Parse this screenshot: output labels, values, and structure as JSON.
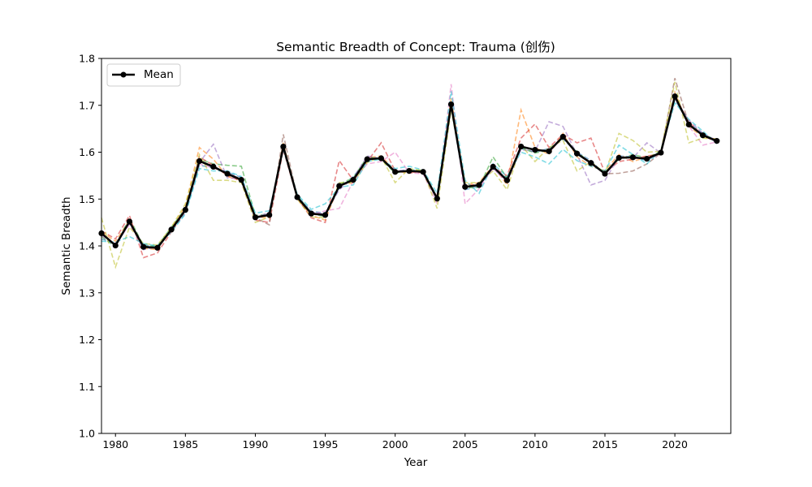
{
  "chart_data": {
    "type": "line",
    "title": "Semantic Breadth of Concept: Trauma (创伤)",
    "xlabel": "Year",
    "ylabel": "Semantic Breadth",
    "xlim": [
      1979,
      2024
    ],
    "ylim": [
      1.0,
      1.8
    ],
    "xticks": [
      1980,
      1985,
      1990,
      1995,
      2000,
      2005,
      2010,
      2015,
      2020
    ],
    "yticks": [
      1.0,
      1.1,
      1.2,
      1.3,
      1.4,
      1.5,
      1.6,
      1.7,
      1.8
    ],
    "ytick_labels": [
      "1.0",
      "1.1",
      "1.2",
      "1.3",
      "1.4",
      "1.5",
      "1.6",
      "1.7",
      "1.8"
    ],
    "grid": false,
    "legend_position": "top-left",
    "x": [
      1979,
      1980,
      1981,
      1982,
      1983,
      1984,
      1985,
      1986,
      1987,
      1988,
      1989,
      1990,
      1991,
      1992,
      1993,
      1994,
      1995,
      1996,
      1997,
      1998,
      1999,
      2000,
      2001,
      2002,
      2003,
      2004,
      2005,
      2006,
      2007,
      2008,
      2009,
      2010,
      2011,
      2012,
      2013,
      2014,
      2015,
      2016,
      2017,
      2018,
      2019,
      2020,
      2021,
      2022,
      2023
    ],
    "series": [
      {
        "name": "Mean",
        "color": "#000000",
        "values": [
          1.427,
          1.401,
          1.452,
          1.398,
          1.396,
          1.435,
          1.477,
          1.581,
          1.569,
          1.554,
          1.541,
          1.461,
          1.466,
          1.612,
          1.504,
          1.469,
          1.466,
          1.528,
          1.541,
          1.585,
          1.587,
          1.558,
          1.56,
          1.558,
          1.501,
          1.702,
          1.526,
          1.53,
          1.569,
          1.54,
          1.612,
          1.605,
          1.602,
          1.633,
          1.597,
          1.577,
          1.554,
          1.588,
          1.589,
          1.586,
          1.599,
          1.719,
          1.659,
          1.636,
          1.624
        ]
      },
      {
        "color": "#1f77b4",
        "values": [
          1.415,
          1.405,
          1.448,
          1.402,
          1.398,
          1.432,
          1.47,
          1.572,
          1.567,
          1.558,
          1.546,
          1.458,
          1.47,
          1.608,
          1.506,
          1.474,
          1.47,
          1.522,
          1.548,
          1.582,
          1.589,
          1.556,
          1.565,
          1.555,
          1.505,
          1.696,
          1.52,
          1.527,
          1.566,
          1.545,
          1.608,
          1.6,
          1.608,
          1.628,
          1.6,
          1.582,
          1.552,
          1.592,
          1.59,
          1.582,
          1.6,
          1.712,
          1.662,
          1.64,
          1.62
        ]
      },
      {
        "color": "#ff7f0e",
        "values": [
          1.43,
          1.41,
          1.455,
          1.395,
          1.392,
          1.438,
          1.485,
          1.61,
          1.585,
          1.548,
          1.54,
          1.462,
          1.46,
          1.62,
          1.5,
          1.465,
          1.455,
          1.53,
          1.535,
          1.588,
          1.592,
          1.56,
          1.555,
          1.56,
          1.498,
          1.715,
          1.53,
          1.535,
          1.572,
          1.53,
          1.69,
          1.61,
          1.595,
          1.64,
          1.59,
          1.57,
          1.56,
          1.595,
          1.58,
          1.59,
          1.598,
          1.728,
          1.655,
          1.632,
          1.628
        ]
      },
      {
        "color": "#2ca02c",
        "values": [
          1.42,
          1.398,
          1.46,
          1.4,
          1.4,
          1.44,
          1.48,
          1.585,
          1.575,
          1.572,
          1.57,
          1.465,
          1.468,
          1.615,
          1.508,
          1.47,
          1.462,
          1.532,
          1.545,
          1.59,
          1.585,
          1.555,
          1.562,
          1.562,
          1.5,
          1.705,
          1.524,
          1.525,
          1.59,
          1.545,
          1.61,
          1.598,
          1.605,
          1.63,
          1.602,
          1.575,
          1.558,
          1.585,
          1.595,
          1.588,
          1.602,
          1.722,
          1.658,
          1.638,
          1.626
        ]
      },
      {
        "color": "#d62728",
        "values": [
          1.432,
          1.415,
          1.465,
          1.375,
          1.385,
          1.43,
          1.475,
          1.59,
          1.572,
          1.55,
          1.538,
          1.455,
          1.45,
          1.605,
          1.502,
          1.46,
          1.45,
          1.582,
          1.54,
          1.58,
          1.62,
          1.56,
          1.558,
          1.556,
          1.505,
          1.7,
          1.528,
          1.532,
          1.568,
          1.55,
          1.63,
          1.66,
          1.61,
          1.638,
          1.62,
          1.63,
          1.556,
          1.58,
          1.585,
          1.592,
          1.596,
          1.718,
          1.665,
          1.635,
          1.622
        ]
      },
      {
        "color": "#9467bd",
        "values": [
          1.422,
          1.4,
          1.45,
          1.392,
          1.398,
          1.436,
          1.478,
          1.578,
          1.617,
          1.545,
          1.544,
          1.46,
          1.472,
          1.61,
          1.505,
          1.472,
          1.468,
          1.52,
          1.545,
          1.592,
          1.586,
          1.562,
          1.56,
          1.558,
          1.502,
          1.7,
          1.526,
          1.528,
          1.565,
          1.538,
          1.605,
          1.602,
          1.665,
          1.655,
          1.595,
          1.53,
          1.54,
          1.59,
          1.588,
          1.62,
          1.598,
          1.715,
          1.668,
          1.64,
          1.625
        ]
      },
      {
        "color": "#8c564b",
        "values": [
          1.428,
          1.402,
          1.452,
          1.398,
          1.396,
          1.434,
          1.476,
          1.582,
          1.57,
          1.555,
          1.54,
          1.46,
          1.445,
          1.638,
          1.504,
          1.468,
          1.465,
          1.528,
          1.54,
          1.585,
          1.588,
          1.558,
          1.56,
          1.558,
          1.5,
          1.703,
          1.526,
          1.53,
          1.57,
          1.54,
          1.612,
          1.604,
          1.602,
          1.634,
          1.598,
          1.578,
          1.554,
          1.555,
          1.56,
          1.575,
          1.598,
          1.758,
          1.66,
          1.636,
          1.624
        ]
      },
      {
        "color": "#e377c2",
        "values": [
          1.425,
          1.404,
          1.445,
          1.4,
          1.394,
          1.437,
          1.474,
          1.575,
          1.566,
          1.556,
          1.542,
          1.462,
          1.468,
          1.612,
          1.506,
          1.466,
          1.475,
          1.48,
          1.538,
          1.575,
          1.58,
          1.6,
          1.556,
          1.554,
          1.49,
          1.745,
          1.49,
          1.522,
          1.566,
          1.535,
          1.612,
          1.606,
          1.6,
          1.632,
          1.596,
          1.578,
          1.552,
          1.588,
          1.59,
          1.585,
          1.596,
          1.718,
          1.656,
          1.615,
          1.622
        ]
      },
      {
        "color": "#7f7f7f",
        "values": [
          1.427,
          1.401,
          1.452,
          1.398,
          1.396,
          1.435,
          1.477,
          1.581,
          1.569,
          1.554,
          1.541,
          1.461,
          1.466,
          1.612,
          1.504,
          1.469,
          1.466,
          1.528,
          1.541,
          1.585,
          1.587,
          1.558,
          1.56,
          1.558,
          1.501,
          1.702,
          1.526,
          1.53,
          1.569,
          1.54,
          1.612,
          1.605,
          1.602,
          1.633,
          1.597,
          1.577,
          1.554,
          1.588,
          1.589,
          1.586,
          1.599,
          1.719,
          1.659,
          1.636,
          1.624
        ]
      },
      {
        "color": "#bcbd22",
        "values": [
          1.46,
          1.355,
          1.44,
          1.405,
          1.402,
          1.44,
          1.49,
          1.595,
          1.54,
          1.54,
          1.535,
          1.45,
          1.462,
          1.615,
          1.5,
          1.462,
          1.46,
          1.535,
          1.535,
          1.578,
          1.59,
          1.535,
          1.565,
          1.56,
          1.48,
          1.69,
          1.535,
          1.535,
          1.56,
          1.52,
          1.615,
          1.58,
          1.61,
          1.625,
          1.56,
          1.58,
          1.555,
          1.64,
          1.625,
          1.6,
          1.602,
          1.75,
          1.62,
          1.63,
          1.628
        ]
      },
      {
        "color": "#17becf",
        "values": [
          1.41,
          1.408,
          1.42,
          1.405,
          1.4,
          1.43,
          1.468,
          1.565,
          1.56,
          1.56,
          1.548,
          1.47,
          1.475,
          1.605,
          1.51,
          1.478,
          1.49,
          1.525,
          1.53,
          1.58,
          1.585,
          1.565,
          1.57,
          1.562,
          1.512,
          1.73,
          1.54,
          1.512,
          1.575,
          1.548,
          1.6,
          1.59,
          1.575,
          1.606,
          1.582,
          1.57,
          1.56,
          1.615,
          1.595,
          1.575,
          1.604,
          1.705,
          1.67,
          1.645,
          1.618
        ]
      }
    ]
  }
}
